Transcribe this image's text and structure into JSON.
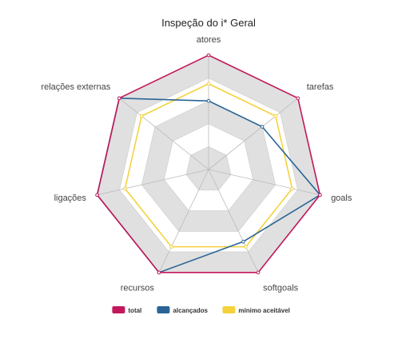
{
  "chart_data": {
    "type": "radar",
    "title": "Inspeção do i* Geral",
    "axes": [
      "atores",
      "tarefas",
      "goals",
      "softgoals",
      "recursos",
      "ligações",
      "relações externas"
    ],
    "rmax": 10,
    "rings": 5,
    "ring_fill": [
      "#e0e0e0",
      "#ffffff",
      "#e0e0e0",
      "#ffffff",
      "#e0e0e0"
    ],
    "series": [
      {
        "name": "total",
        "color": "#c2185b",
        "values": [
          10,
          10,
          10,
          10,
          10,
          10,
          10
        ]
      },
      {
        "name": "alcançados",
        "color": "#2a6496",
        "values": [
          6,
          6,
          10,
          7,
          10,
          10,
          10
        ]
      },
      {
        "name": "mínimo aceitável",
        "color": "#f5d13b",
        "values": [
          7.5,
          7.5,
          7.5,
          7.5,
          7.5,
          7.5,
          7.5
        ]
      }
    ],
    "legend_position": "bottom"
  }
}
